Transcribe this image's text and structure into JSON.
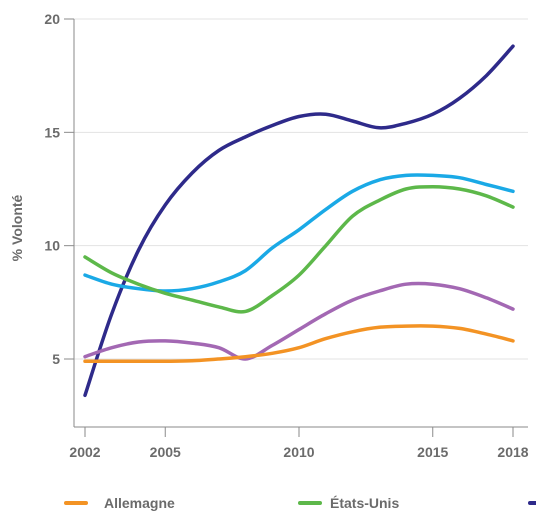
{
  "chart_data": {
    "type": "line",
    "ylabel": "% Volonté",
    "xlabel": "",
    "xlim": [
      2002,
      2018
    ],
    "ylim": [
      2,
      20
    ],
    "x_ticks": [
      2002,
      2005,
      2010,
      2015,
      2018
    ],
    "y_ticks": [
      5,
      10,
      15,
      20
    ],
    "grid": "horizontal",
    "legend_position": "bottom",
    "series": [
      {
        "name": "",
        "color": "#2e2a8a",
        "x": [
          2002,
          2003,
          2004,
          2005,
          2006,
          2007,
          2008,
          2009,
          2010,
          2011,
          2012,
          2013,
          2014,
          2015,
          2016,
          2017,
          2018
        ],
        "values": [
          3.4,
          7.0,
          9.8,
          11.8,
          13.2,
          14.2,
          14.8,
          15.3,
          15.7,
          15.8,
          15.5,
          15.2,
          15.4,
          15.8,
          16.5,
          17.5,
          18.8
        ]
      },
      {
        "name": "",
        "color": "#1aa9e6",
        "x": [
          2002,
          2003,
          2004,
          2005,
          2006,
          2007,
          2008,
          2009,
          2010,
          2011,
          2012,
          2013,
          2014,
          2015,
          2016,
          2017,
          2018
        ],
        "values": [
          8.7,
          8.3,
          8.1,
          8.0,
          8.1,
          8.4,
          8.9,
          9.9,
          10.7,
          11.6,
          12.4,
          12.9,
          13.1,
          13.1,
          13.0,
          12.7,
          12.4
        ]
      },
      {
        "name": "États-Unis",
        "color": "#5db84a",
        "x": [
          2002,
          2003,
          2004,
          2005,
          2006,
          2007,
          2008,
          2009,
          2010,
          2011,
          2012,
          2013,
          2014,
          2015,
          2016,
          2017,
          2018
        ],
        "values": [
          9.5,
          8.8,
          8.3,
          7.9,
          7.6,
          7.3,
          7.1,
          7.8,
          8.7,
          10.0,
          11.3,
          12.0,
          12.5,
          12.6,
          12.5,
          12.2,
          11.7
        ]
      },
      {
        "name": "",
        "color": "#a368b3",
        "x": [
          2002,
          2003,
          2004,
          2005,
          2006,
          2007,
          2008,
          2009,
          2010,
          2011,
          2012,
          2013,
          2014,
          2015,
          2016,
          2017,
          2018
        ],
        "values": [
          5.1,
          5.5,
          5.75,
          5.8,
          5.7,
          5.5,
          5.0,
          5.6,
          6.3,
          7.0,
          7.6,
          8.0,
          8.3,
          8.3,
          8.1,
          7.7,
          7.2
        ]
      },
      {
        "name": "Allemagne",
        "color": "#f39324",
        "x": [
          2002,
          2003,
          2004,
          2005,
          2006,
          2007,
          2008,
          2009,
          2010,
          2011,
          2012,
          2013,
          2014,
          2015,
          2016,
          2017,
          2018
        ],
        "values": [
          4.9,
          4.9,
          4.9,
          4.9,
          4.92,
          5.0,
          5.1,
          5.25,
          5.5,
          5.9,
          6.2,
          6.4,
          6.45,
          6.45,
          6.35,
          6.1,
          5.8
        ]
      }
    ],
    "legend": [
      {
        "label": "Allemagne",
        "color": "#f39324"
      },
      {
        "label": "États-Unis",
        "color": "#5db84a"
      },
      {
        "label": "",
        "color": "#2e2a8a"
      }
    ]
  }
}
